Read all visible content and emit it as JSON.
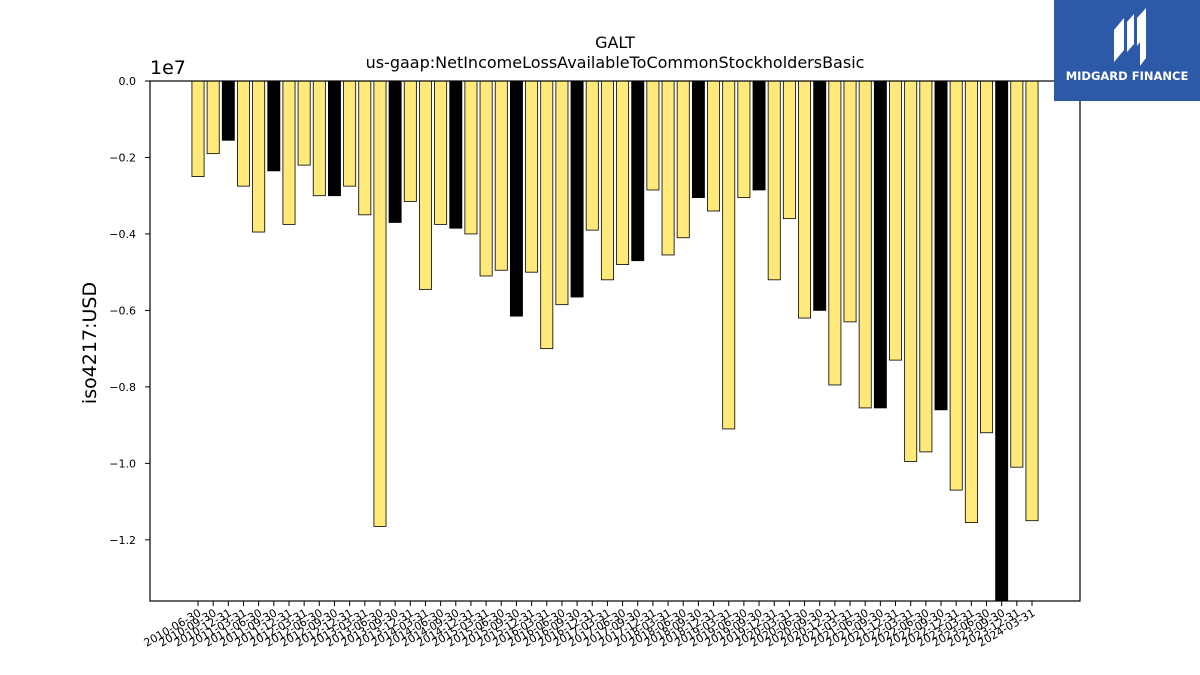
{
  "chart_data": {
    "type": "bar",
    "title": "GALT",
    "subtitle": "us-gaap:NetIncomeLossAvailableToCommonStockholdersBasic",
    "ylabel": "iso4217:USD",
    "xlabel": "",
    "y_scale_label": "1e7",
    "y_scale": 10000000,
    "ylim": [
      -13600000,
      0
    ],
    "yticks": [
      0,
      -2000000,
      -4000000,
      -6000000,
      -8000000,
      -10000000,
      -12000000
    ],
    "ytick_labels": [
      "0.0",
      "−0.2",
      "−0.4",
      "−0.6",
      "−0.8",
      "−1.0",
      "−1.2"
    ],
    "grid": false,
    "colors": {
      "annual": "#000000",
      "quarterly": "#ffe97a",
      "edge": "#000000"
    },
    "categories": [
      "2010-06-30",
      "2010-09-30",
      "2010-12-31",
      "2011-03-31",
      "2011-06-30",
      "2011-09-30",
      "2011-12-31",
      "2012-03-31",
      "2012-06-30",
      "2012-09-30",
      "2012-12-31",
      "2013-03-31",
      "2013-06-30",
      "2013-09-30",
      "2013-12-31",
      "2014-03-31",
      "2014-06-30",
      "2014-09-30",
      "2014-12-31",
      "2015-03-31",
      "2015-06-30",
      "2015-09-30",
      "2015-12-31",
      "2016-03-31",
      "2016-06-30",
      "2016-09-30",
      "2016-12-31",
      "2017-03-31",
      "2017-06-30",
      "2017-09-30",
      "2017-12-31",
      "2018-03-31",
      "2018-06-30",
      "2018-09-30",
      "2018-12-31",
      "2019-03-31",
      "2019-06-30",
      "2019-09-30",
      "2019-12-31",
      "2020-03-31",
      "2020-06-30",
      "2020-09-30",
      "2020-12-31",
      "2021-03-31",
      "2021-06-30",
      "2021-09-30",
      "2021-12-31",
      "2022-03-31",
      "2022-06-30",
      "2022-09-30",
      "2022-12-31",
      "2023-03-31",
      "2023-06-30",
      "2023-09-30",
      "2023-12-31",
      "2024-03-31"
    ],
    "series": [
      {
        "values": [
          -2500000,
          -1900000,
          -1550000,
          -2750000,
          -3950000,
          -2350000,
          -3750000,
          -2200000,
          -3000000,
          -3000000,
          -2750000,
          -3500000,
          -11650000,
          -3700000,
          -3150000,
          -5450000,
          -3750000,
          -3850000,
          -4000000,
          -5100000,
          -4950000,
          -6150000,
          -5000000,
          -7000000,
          -5850000,
          -5650000,
          -3900000,
          -5200000,
          -4800000,
          -4700000,
          -2850000,
          -4550000,
          -4100000,
          -3050000,
          -3400000,
          -9100000,
          -3050000,
          -2850000,
          -5200000,
          -3600000,
          -6200000,
          -6000000,
          -7950000,
          -6300000,
          -8550000,
          -8550000,
          -7300000,
          -9950000,
          -9700000,
          -8600000,
          -10700000,
          -11550000,
          -9200000,
          -13600000,
          -10100000,
          -11500000
        ],
        "annual_flags": [
          0,
          0,
          1,
          0,
          0,
          1,
          0,
          0,
          0,
          1,
          0,
          0,
          0,
          1,
          0,
          0,
          0,
          1,
          0,
          0,
          0,
          1,
          0,
          0,
          0,
          1,
          0,
          0,
          0,
          1,
          0,
          0,
          0,
          1,
          0,
          0,
          0,
          1,
          0,
          0,
          0,
          1,
          0,
          0,
          0,
          1,
          0,
          0,
          0,
          1,
          0,
          0,
          0,
          1,
          0,
          0
        ]
      }
    ]
  },
  "logo": {
    "name": "MIDGARD FINANCE",
    "icon": "mf-logo-icon"
  }
}
